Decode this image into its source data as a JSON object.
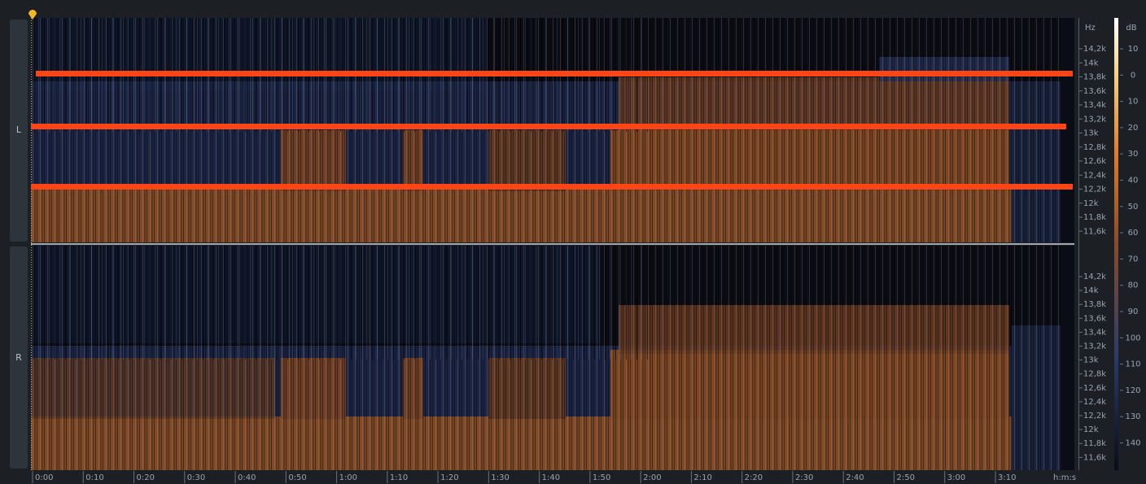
{
  "channels": [
    {
      "label": "L",
      "frequency_labels": [
        "14,2k",
        "14k",
        "13,8k",
        "13,6k",
        "13,4k",
        "13,2k",
        "13k",
        "12,8k",
        "12,6k",
        "12,4k",
        "12,2k",
        "12k",
        "11,8k",
        "11,6k"
      ]
    },
    {
      "label": "R",
      "frequency_labels": [
        "14,2k",
        "14k",
        "13,8k",
        "13,6k",
        "13,4k",
        "13,2k",
        "13k",
        "12,8k",
        "12,6k",
        "12,4k",
        "12,2k",
        "12k",
        "11,8k",
        "11,6k"
      ]
    }
  ],
  "frequency_unit": "Hz",
  "db_scale": {
    "unit": "dB",
    "labels": [
      "10",
      "0",
      "10",
      "20",
      "30",
      "40",
      "50",
      "60",
      "70",
      "80",
      "90",
      "100",
      "110",
      "120",
      "130",
      "140"
    ]
  },
  "time_axis": {
    "unit": "h:m:s",
    "labels": [
      "0:00",
      "0:10",
      "0:20",
      "0:30",
      "0:40",
      "0:50",
      "1:00",
      "1:10",
      "1:20",
      "1:30",
      "1:40",
      "1:50",
      "2:00",
      "2:10",
      "2:20",
      "2:30",
      "2:40",
      "2:50",
      "3:00",
      "3:10"
    ]
  }
}
